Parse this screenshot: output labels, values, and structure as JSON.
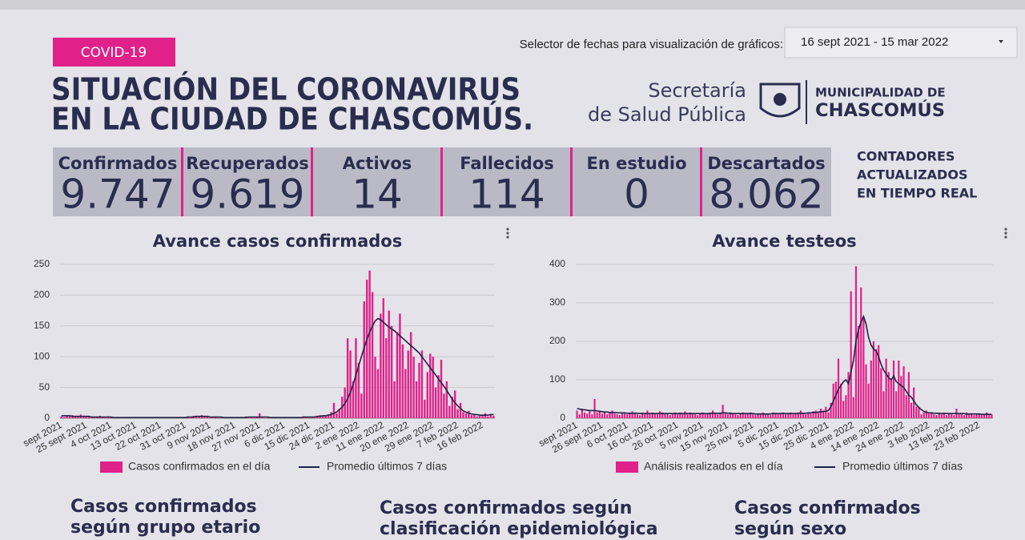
{
  "header": {
    "tag": "COVID-19",
    "title": [
      "SITUACIÓN DEL CORONAVIRUS",
      "EN LA CIUDAD DE CHASCOMÚS."
    ],
    "date_selector": {
      "label": "Selector de fechas para visualización de gráficos:",
      "value": "16 sept 2021 - 15 mar 2022"
    },
    "logo": {
      "dept": [
        "Secretaría",
        "de Salud Pública"
      ],
      "municipality": [
        "MUNICIPALIDAD DE",
        "CHASCOMÚS"
      ]
    }
  },
  "counters": [
    {
      "label": "Confirmados",
      "value": "9.747"
    },
    {
      "label": "Recuperados",
      "value": "9.619"
    },
    {
      "label": "Activos",
      "value": "14"
    },
    {
      "label": "Fallecidos",
      "value": "114"
    },
    {
      "label": "En estudio",
      "value": "0"
    },
    {
      "label": "Descartados",
      "value": "8.062"
    }
  ],
  "counters_note": [
    "CONTADORES",
    "ACTUALIZADOS",
    "EN TIEMPO REAL"
  ],
  "chart_data": [
    {
      "type": "bar",
      "title": "Avance casos confirmados",
      "ylim": [
        0,
        250
      ],
      "yticks": [
        0,
        50,
        100,
        150,
        200,
        250
      ],
      "grid": true,
      "categories": [
        "sept 2021",
        null,
        null,
        null,
        null,
        null,
        null,
        null,
        null,
        "25 sept 2021",
        null,
        null,
        null,
        null,
        null,
        null,
        null,
        null,
        "4 oct 2021",
        null,
        null,
        null,
        null,
        null,
        null,
        null,
        null,
        "13 oct 2021",
        null,
        null,
        null,
        null,
        null,
        null,
        null,
        null,
        "22 oct 2021",
        null,
        null,
        null,
        null,
        null,
        null,
        null,
        null,
        "31 oct 2021",
        null,
        null,
        null,
        null,
        null,
        null,
        null,
        null,
        "9 nov 2021",
        null,
        null,
        null,
        null,
        null,
        null,
        null,
        null,
        "18 nov 2021",
        null,
        null,
        null,
        null,
        null,
        null,
        null,
        null,
        "27 nov 2021",
        null,
        null,
        null,
        null,
        null,
        null,
        null,
        null,
        "6 dic 2021",
        null,
        null,
        null,
        null,
        null,
        null,
        null,
        null,
        "15 dic 2021",
        null,
        null,
        null,
        null,
        null,
        null,
        null,
        null,
        "24 dic 2021",
        null,
        null,
        null,
        null,
        null,
        null,
        null,
        null,
        "2 ene 2022",
        null,
        null,
        null,
        null,
        null,
        null,
        null,
        null,
        "11 ene 2022",
        null,
        null,
        null,
        null,
        null,
        null,
        null,
        null,
        "20 ene 2022",
        null,
        null,
        null,
        null,
        null,
        null,
        null,
        null,
        "29 ene 2022",
        null,
        null,
        null,
        null,
        null,
        null,
        null,
        null,
        "7 feb 2022",
        null,
        null,
        null,
        null,
        null,
        null,
        null,
        null,
        "16 feb 2022",
        null,
        null,
        null,
        null
      ],
      "series": [
        {
          "name": "Casos confirmados en el día",
          "type": "bar",
          "color": "#e0218a",
          "values": [
            3,
            2,
            4,
            3,
            5,
            2,
            3,
            6,
            4,
            3,
            2,
            3,
            1,
            2,
            4,
            2,
            1,
            3,
            2,
            1,
            1,
            2,
            1,
            0,
            2,
            1,
            1,
            0,
            1,
            2,
            1,
            0,
            1,
            1,
            0,
            2,
            1,
            0,
            1,
            1,
            0,
            1,
            2,
            1,
            0,
            1,
            3,
            2,
            4,
            3,
            2,
            5,
            3,
            2,
            1,
            2,
            3,
            1,
            2,
            1,
            0,
            1,
            2,
            1,
            1,
            0,
            2,
            3,
            1,
            2,
            1,
            2,
            8,
            1,
            0,
            1,
            1,
            2,
            1,
            0,
            1,
            2,
            1,
            0,
            1,
            2,
            1,
            2,
            3,
            2,
            1,
            2,
            3,
            4,
            5,
            3,
            4,
            6,
            10,
            25,
            8,
            15,
            35,
            50,
            130,
            110,
            60,
            130,
            90,
            40,
            190,
            225,
            240,
            205,
            100,
            80,
            170,
            195,
            130,
            175,
            150,
            60,
            140,
            170,
            120,
            80,
            110,
            140,
            100,
            60,
            90,
            110,
            30,
            75,
            105,
            100,
            50,
            70,
            95,
            40,
            60,
            20,
            35,
            45,
            15,
            25,
            10,
            8,
            12,
            5,
            6,
            3,
            5,
            4,
            8,
            3,
            5,
            4
          ]
        },
        {
          "name": "Promedio últimos 7 días",
          "type": "line",
          "color": "#1f2345",
          "values": [
            4,
            4,
            4,
            4,
            3,
            3,
            3,
            3,
            3,
            3,
            3,
            2,
            2,
            2,
            2,
            2,
            2,
            2,
            2,
            1,
            1,
            1,
            1,
            1,
            1,
            1,
            1,
            1,
            1,
            1,
            1,
            1,
            1,
            1,
            1,
            1,
            1,
            1,
            1,
            1,
            1,
            1,
            1,
            1,
            1,
            1,
            2,
            2,
            2,
            3,
            3,
            3,
            3,
            3,
            2,
            2,
            2,
            2,
            2,
            1,
            1,
            1,
            1,
            1,
            1,
            1,
            1,
            1,
            2,
            2,
            2,
            2,
            2,
            2,
            2,
            2,
            1,
            1,
            1,
            1,
            1,
            1,
            1,
            1,
            1,
            1,
            1,
            1,
            2,
            2,
            2,
            2,
            2,
            3,
            3,
            4,
            4,
            5,
            6,
            8,
            10,
            14,
            18,
            24,
            32,
            42,
            55,
            70,
            85,
            100,
            115,
            128,
            140,
            150,
            158,
            162,
            160,
            156,
            152,
            148,
            145,
            142,
            138,
            134,
            130,
            126,
            122,
            118,
            114,
            110,
            106,
            100,
            94,
            88,
            82,
            76,
            70,
            64,
            58,
            52,
            45,
            38,
            31,
            25,
            20,
            16,
            12,
            10,
            8,
            7,
            6,
            6,
            5,
            5,
            5,
            5,
            6,
            6
          ]
        }
      ]
    },
    {
      "type": "bar",
      "title": "Avance testeos",
      "ylim": [
        0,
        400
      ],
      "yticks": [
        0,
        100,
        200,
        300,
        400
      ],
      "grid": true,
      "categories": [
        "sept 2021",
        null,
        null,
        null,
        null,
        null,
        null,
        null,
        null,
        null,
        "26 sept 2021",
        null,
        null,
        null,
        null,
        null,
        null,
        null,
        null,
        null,
        "6 oct 2021",
        null,
        null,
        null,
        null,
        null,
        null,
        null,
        null,
        null,
        "16 oct 2021",
        null,
        null,
        null,
        null,
        null,
        null,
        null,
        null,
        null,
        "26 oct 2021",
        null,
        null,
        null,
        null,
        null,
        null,
        null,
        null,
        null,
        "5 nov 2021",
        null,
        null,
        null,
        null,
        null,
        null,
        null,
        null,
        null,
        "15 nov 2021",
        null,
        null,
        null,
        null,
        null,
        null,
        null,
        null,
        null,
        "25 nov 2021",
        null,
        null,
        null,
        null,
        null,
        null,
        null,
        null,
        null,
        "5 dic 2021",
        null,
        null,
        null,
        null,
        null,
        null,
        null,
        null,
        null,
        "15 dic 2021",
        null,
        null,
        null,
        null,
        null,
        null,
        null,
        null,
        null,
        "25 dic 2021",
        null,
        null,
        null,
        null,
        null,
        null,
        null,
        null,
        null,
        "4 ene 2022",
        null,
        null,
        null,
        null,
        null,
        null,
        null,
        null,
        null,
        "14 ene 2022",
        null,
        null,
        null,
        null,
        null,
        null,
        null,
        null,
        null,
        "24 ene 2022",
        null,
        null,
        null,
        null,
        null,
        null,
        null,
        null,
        null,
        "3 feb 2022",
        null,
        null,
        null,
        null,
        null,
        null,
        null,
        null,
        null,
        "13 feb 2022",
        null,
        null,
        null,
        null,
        null,
        null,
        null,
        null,
        null,
        "23 feb 2022",
        null,
        null,
        null,
        null,
        null
      ],
      "series": [
        {
          "name": "Análisis realizados en el día",
          "type": "bar",
          "color": "#e0218a",
          "values": [
            20,
            10,
            25,
            15,
            12,
            18,
            10,
            50,
            15,
            20,
            12,
            18,
            10,
            15,
            20,
            12,
            10,
            8,
            15,
            12,
            10,
            15,
            18,
            12,
            10,
            8,
            15,
            12,
            20,
            10,
            15,
            12,
            10,
            18,
            15,
            12,
            10,
            8,
            12,
            15,
            10,
            15,
            12,
            18,
            10,
            15,
            12,
            10,
            8,
            12,
            15,
            10,
            12,
            15,
            20,
            12,
            10,
            15,
            35,
            12,
            10,
            15,
            12,
            10,
            8,
            12,
            15,
            10,
            12,
            15,
            10,
            8,
            12,
            10,
            15,
            12,
            10,
            8,
            15,
            12,
            10,
            12,
            15,
            10,
            12,
            15,
            10,
            12,
            15,
            20,
            12,
            10,
            15,
            12,
            18,
            20,
            15,
            25,
            20,
            30,
            15,
            40,
            90,
            95,
            155,
            90,
            45,
            60,
            120,
            330,
            55,
            395,
            240,
            340,
            260,
            140,
            90,
            150,
            200,
            180,
            190,
            130,
            70,
            155,
            120,
            100,
            150,
            70,
            150,
            110,
            135,
            60,
            120,
            40,
            80,
            30,
            30,
            10,
            15,
            20,
            12,
            15,
            10,
            8,
            12,
            10,
            15,
            8,
            12,
            10,
            8,
            25,
            10,
            12,
            8,
            15,
            10,
            12,
            8,
            10,
            12,
            8,
            10,
            15,
            8,
            10
          ]
        },
        {
          "name": "Promedio últimos 7 días",
          "type": "line",
          "color": "#1f2345",
          "values": [
            25,
            24,
            22,
            22,
            21,
            20,
            20,
            20,
            19,
            18,
            17,
            16,
            16,
            15,
            15,
            15,
            14,
            14,
            14,
            14,
            13,
            13,
            13,
            13,
            13,
            12,
            12,
            12,
            12,
            12,
            12,
            12,
            12,
            12,
            12,
            12,
            12,
            12,
            12,
            12,
            12,
            12,
            12,
            12,
            12,
            12,
            12,
            12,
            12,
            12,
            12,
            12,
            12,
            12,
            13,
            13,
            13,
            13,
            14,
            14,
            13,
            13,
            12,
            12,
            12,
            12,
            12,
            12,
            12,
            12,
            12,
            11,
            11,
            11,
            11,
            11,
            11,
            11,
            12,
            12,
            12,
            12,
            12,
            12,
            12,
            12,
            12,
            12,
            13,
            13,
            13,
            13,
            14,
            14,
            15,
            15,
            16,
            16,
            18,
            18,
            20,
            30,
            45,
            60,
            75,
            85,
            95,
            100,
            90,
            120,
            150,
            200,
            230,
            250,
            265,
            245,
            210,
            190,
            180,
            175,
            160,
            140,
            125,
            115,
            105,
            100,
            110,
            95,
            90,
            85,
            80,
            70,
            60,
            55,
            45,
            35,
            28,
            22,
            18,
            15,
            14,
            14,
            13,
            13,
            13,
            12,
            12,
            12,
            12,
            12,
            12,
            12,
            12,
            12,
            12,
            11,
            11,
            11,
            11,
            11,
            11,
            10,
            10,
            10,
            10,
            10
          ]
        }
      ]
    }
  ],
  "sections": [
    [
      "Casos confirmados",
      "según grupo etario"
    ],
    [
      "Casos confirmados según",
      "clasificación epidemiológica"
    ],
    [
      "Casos confirmados",
      "según sexo"
    ]
  ]
}
